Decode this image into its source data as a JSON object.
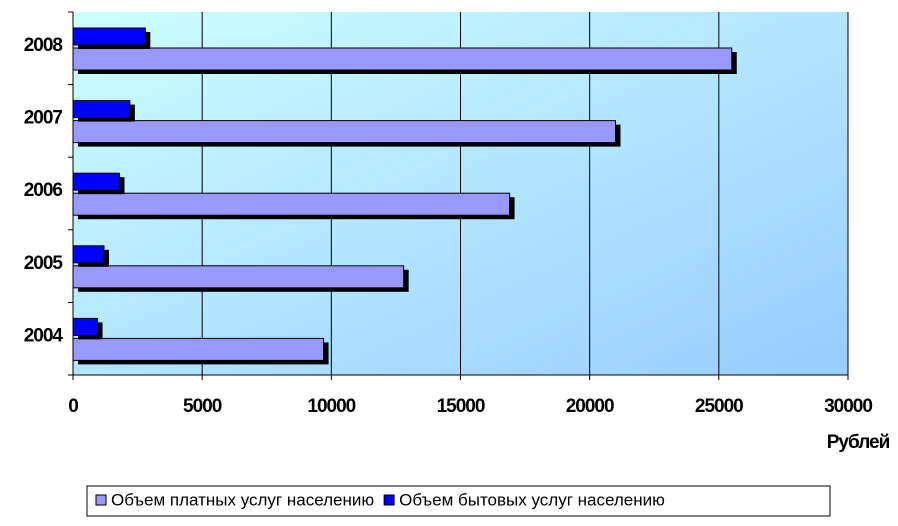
{
  "chart_data": {
    "type": "bar",
    "orientation": "horizontal",
    "x_label": "Рублей",
    "categories": [
      "2004",
      "2005",
      "2006",
      "2007",
      "2008"
    ],
    "series": [
      {
        "name": "Объем платных услуг населению",
        "color": "#9999ff",
        "values": [
          9700,
          12800,
          16900,
          21000,
          25500
        ]
      },
      {
        "name": "Объем бытовых услуг населению",
        "color": "#0000ff",
        "values": [
          950,
          1200,
          1800,
          2200,
          2800
        ]
      }
    ],
    "xlim": [
      0,
      30000
    ],
    "xticks": [
      0,
      5000,
      10000,
      15000,
      20000,
      25000,
      30000
    ],
    "grid": true,
    "legend": "bottom"
  }
}
